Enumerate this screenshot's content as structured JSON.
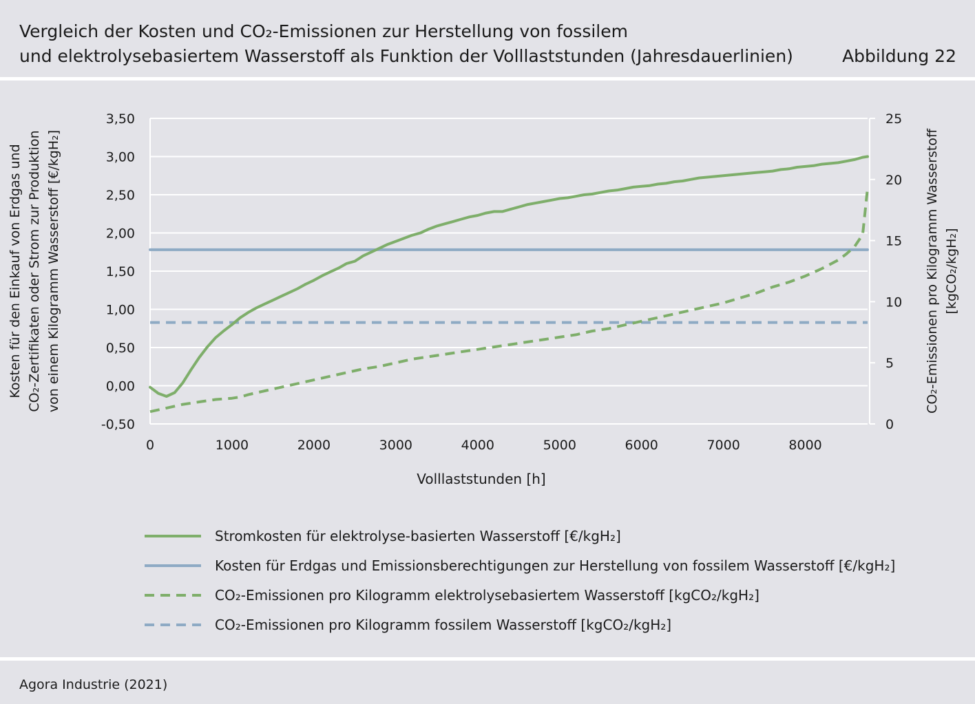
{
  "header": {
    "title_line1": "Vergleich der Kosten und CO₂-Emissionen zur Herstellung von fossilem",
    "title_line2": "und elektrolysebasiertem Wasserstoff als Funktion der Volllaststunden (Jahresdauerlinien)",
    "figure_label": "Abbildung 22"
  },
  "footer": {
    "source": "Agora Industrie (2021)"
  },
  "chart_data": {
    "type": "line",
    "xlabel": "Volllaststunden [h]",
    "ylabel_left_lines": [
      "Kosten für den Einkauf von Erdgas und",
      "CO₂-Zertifikaten oder Strom zur Produktion",
      "von einem Kilogramm Wasserstoff [€/kgH₂]"
    ],
    "ylabel_right_lines": [
      "CO₂-Emissionen pro Kilogramm Wasserstoff",
      "[kgCO₂/kgH₂]"
    ],
    "xlim": [
      0,
      8760
    ],
    "x_ticks": [
      0,
      1000,
      2000,
      3000,
      4000,
      5000,
      6000,
      7000,
      8000
    ],
    "x_tick_labels": [
      "0",
      "1000",
      "2000",
      "3000",
      "4000",
      "5000",
      "6000",
      "7000",
      "8000"
    ],
    "ylim_left": [
      -0.5,
      3.5
    ],
    "y_left_ticks": [
      -0.5,
      0,
      0.5,
      1,
      1.5,
      2,
      2.5,
      3,
      3.5
    ],
    "y_left_tick_labels": [
      "-0,50",
      "0,00",
      "0,50",
      "1,00",
      "1,50",
      "2,00",
      "2,50",
      "3,00",
      "3,50"
    ],
    "ylim_right": [
      0,
      25
    ],
    "y_right_ticks": [
      0,
      5,
      10,
      15,
      20,
      25
    ],
    "y_right_tick_labels": [
      "0",
      "5",
      "10",
      "15",
      "20",
      "25"
    ],
    "grid": true,
    "legend_position": "bottom",
    "series": [
      {
        "name": "Stromkosten für elektrolyse-basierten Wasserstoff [€/kgH₂]",
        "axis": "left",
        "color": "#7eae6a",
        "dashed": false,
        "x": [
          0,
          100,
          200,
          300,
          400,
          500,
          600,
          700,
          800,
          900,
          1000,
          1100,
          1200,
          1300,
          1400,
          1500,
          1600,
          1700,
          1800,
          1900,
          2000,
          2100,
          2200,
          2300,
          2400,
          2500,
          2600,
          2700,
          2800,
          2900,
          3000,
          3100,
          3200,
          3300,
          3400,
          3500,
          3600,
          3700,
          3800,
          3900,
          4000,
          4100,
          4200,
          4300,
          4400,
          4500,
          4600,
          4700,
          4800,
          4900,
          5000,
          5100,
          5200,
          5300,
          5400,
          5500,
          5600,
          5700,
          5800,
          5900,
          6000,
          6100,
          6200,
          6300,
          6400,
          6500,
          6600,
          6700,
          6800,
          6900,
          7000,
          7100,
          7200,
          7300,
          7400,
          7500,
          7600,
          7700,
          7800,
          7900,
          8000,
          8100,
          8200,
          8300,
          8400,
          8500,
          8600,
          8700,
          8760
        ],
        "y": [
          -0.02,
          -0.1,
          -0.14,
          -0.09,
          0.04,
          0.21,
          0.37,
          0.51,
          0.63,
          0.72,
          0.8,
          0.89,
          0.96,
          1.02,
          1.07,
          1.12,
          1.17,
          1.22,
          1.27,
          1.33,
          1.38,
          1.44,
          1.49,
          1.54,
          1.6,
          1.63,
          1.7,
          1.75,
          1.8,
          1.85,
          1.89,
          1.93,
          1.97,
          2.0,
          2.05,
          2.09,
          2.12,
          2.15,
          2.18,
          2.21,
          2.23,
          2.26,
          2.28,
          2.28,
          2.31,
          2.34,
          2.37,
          2.39,
          2.41,
          2.43,
          2.45,
          2.46,
          2.48,
          2.5,
          2.51,
          2.53,
          2.55,
          2.56,
          2.58,
          2.6,
          2.61,
          2.62,
          2.64,
          2.65,
          2.67,
          2.68,
          2.7,
          2.72,
          2.73,
          2.74,
          2.75,
          2.76,
          2.77,
          2.78,
          2.79,
          2.8,
          2.81,
          2.83,
          2.84,
          2.86,
          2.87,
          2.88,
          2.9,
          2.91,
          2.92,
          2.94,
          2.96,
          2.99,
          3.0
        ]
      },
      {
        "name": "Kosten für Erdgas und Emissionsberechtigungen zur Herstellung von fossilem Wasserstoff [€/kgH₂]",
        "axis": "left",
        "color": "#8eaac4",
        "dashed": false,
        "x": [
          0,
          8760
        ],
        "y": [
          1.78,
          1.78
        ]
      },
      {
        "name": "CO₂-Emissionen pro Kilogramm elektrolysebasiertem Wasserstoff [kgCO₂/kgH₂]",
        "axis": "right",
        "color": "#7eae6a",
        "dashed": true,
        "x": [
          0,
          200,
          400,
          600,
          800,
          1000,
          1100,
          1200,
          1400,
          1600,
          1800,
          2000,
          2200,
          2400,
          2600,
          2800,
          3000,
          3200,
          3400,
          3600,
          3800,
          4000,
          4200,
          4400,
          4600,
          4800,
          5000,
          5200,
          5400,
          5600,
          5800,
          6000,
          6200,
          6400,
          6600,
          6800,
          7000,
          7200,
          7400,
          7600,
          7800,
          8000,
          8200,
          8400,
          8500,
          8600,
          8700,
          8760
        ],
        "y": [
          1.0,
          1.3,
          1.6,
          1.8,
          2.0,
          2.1,
          2.2,
          2.4,
          2.7,
          3.0,
          3.3,
          3.6,
          3.9,
          4.2,
          4.5,
          4.7,
          5.0,
          5.3,
          5.5,
          5.7,
          5.9,
          6.1,
          6.3,
          6.5,
          6.7,
          6.9,
          7.1,
          7.3,
          7.6,
          7.8,
          8.1,
          8.4,
          8.7,
          9.0,
          9.3,
          9.6,
          9.9,
          10.3,
          10.7,
          11.2,
          11.6,
          12.1,
          12.7,
          13.4,
          13.9,
          14.5,
          15.5,
          19.3
        ]
      },
      {
        "name": "CO₂-Emissionen pro Kilogramm fossilem Wasserstoff [kgCO₂/kgH₂]",
        "axis": "right",
        "color": "#8eaac4",
        "dashed": true,
        "x": [
          0,
          8760
        ],
        "y": [
          8.3,
          8.3
        ]
      }
    ]
  }
}
